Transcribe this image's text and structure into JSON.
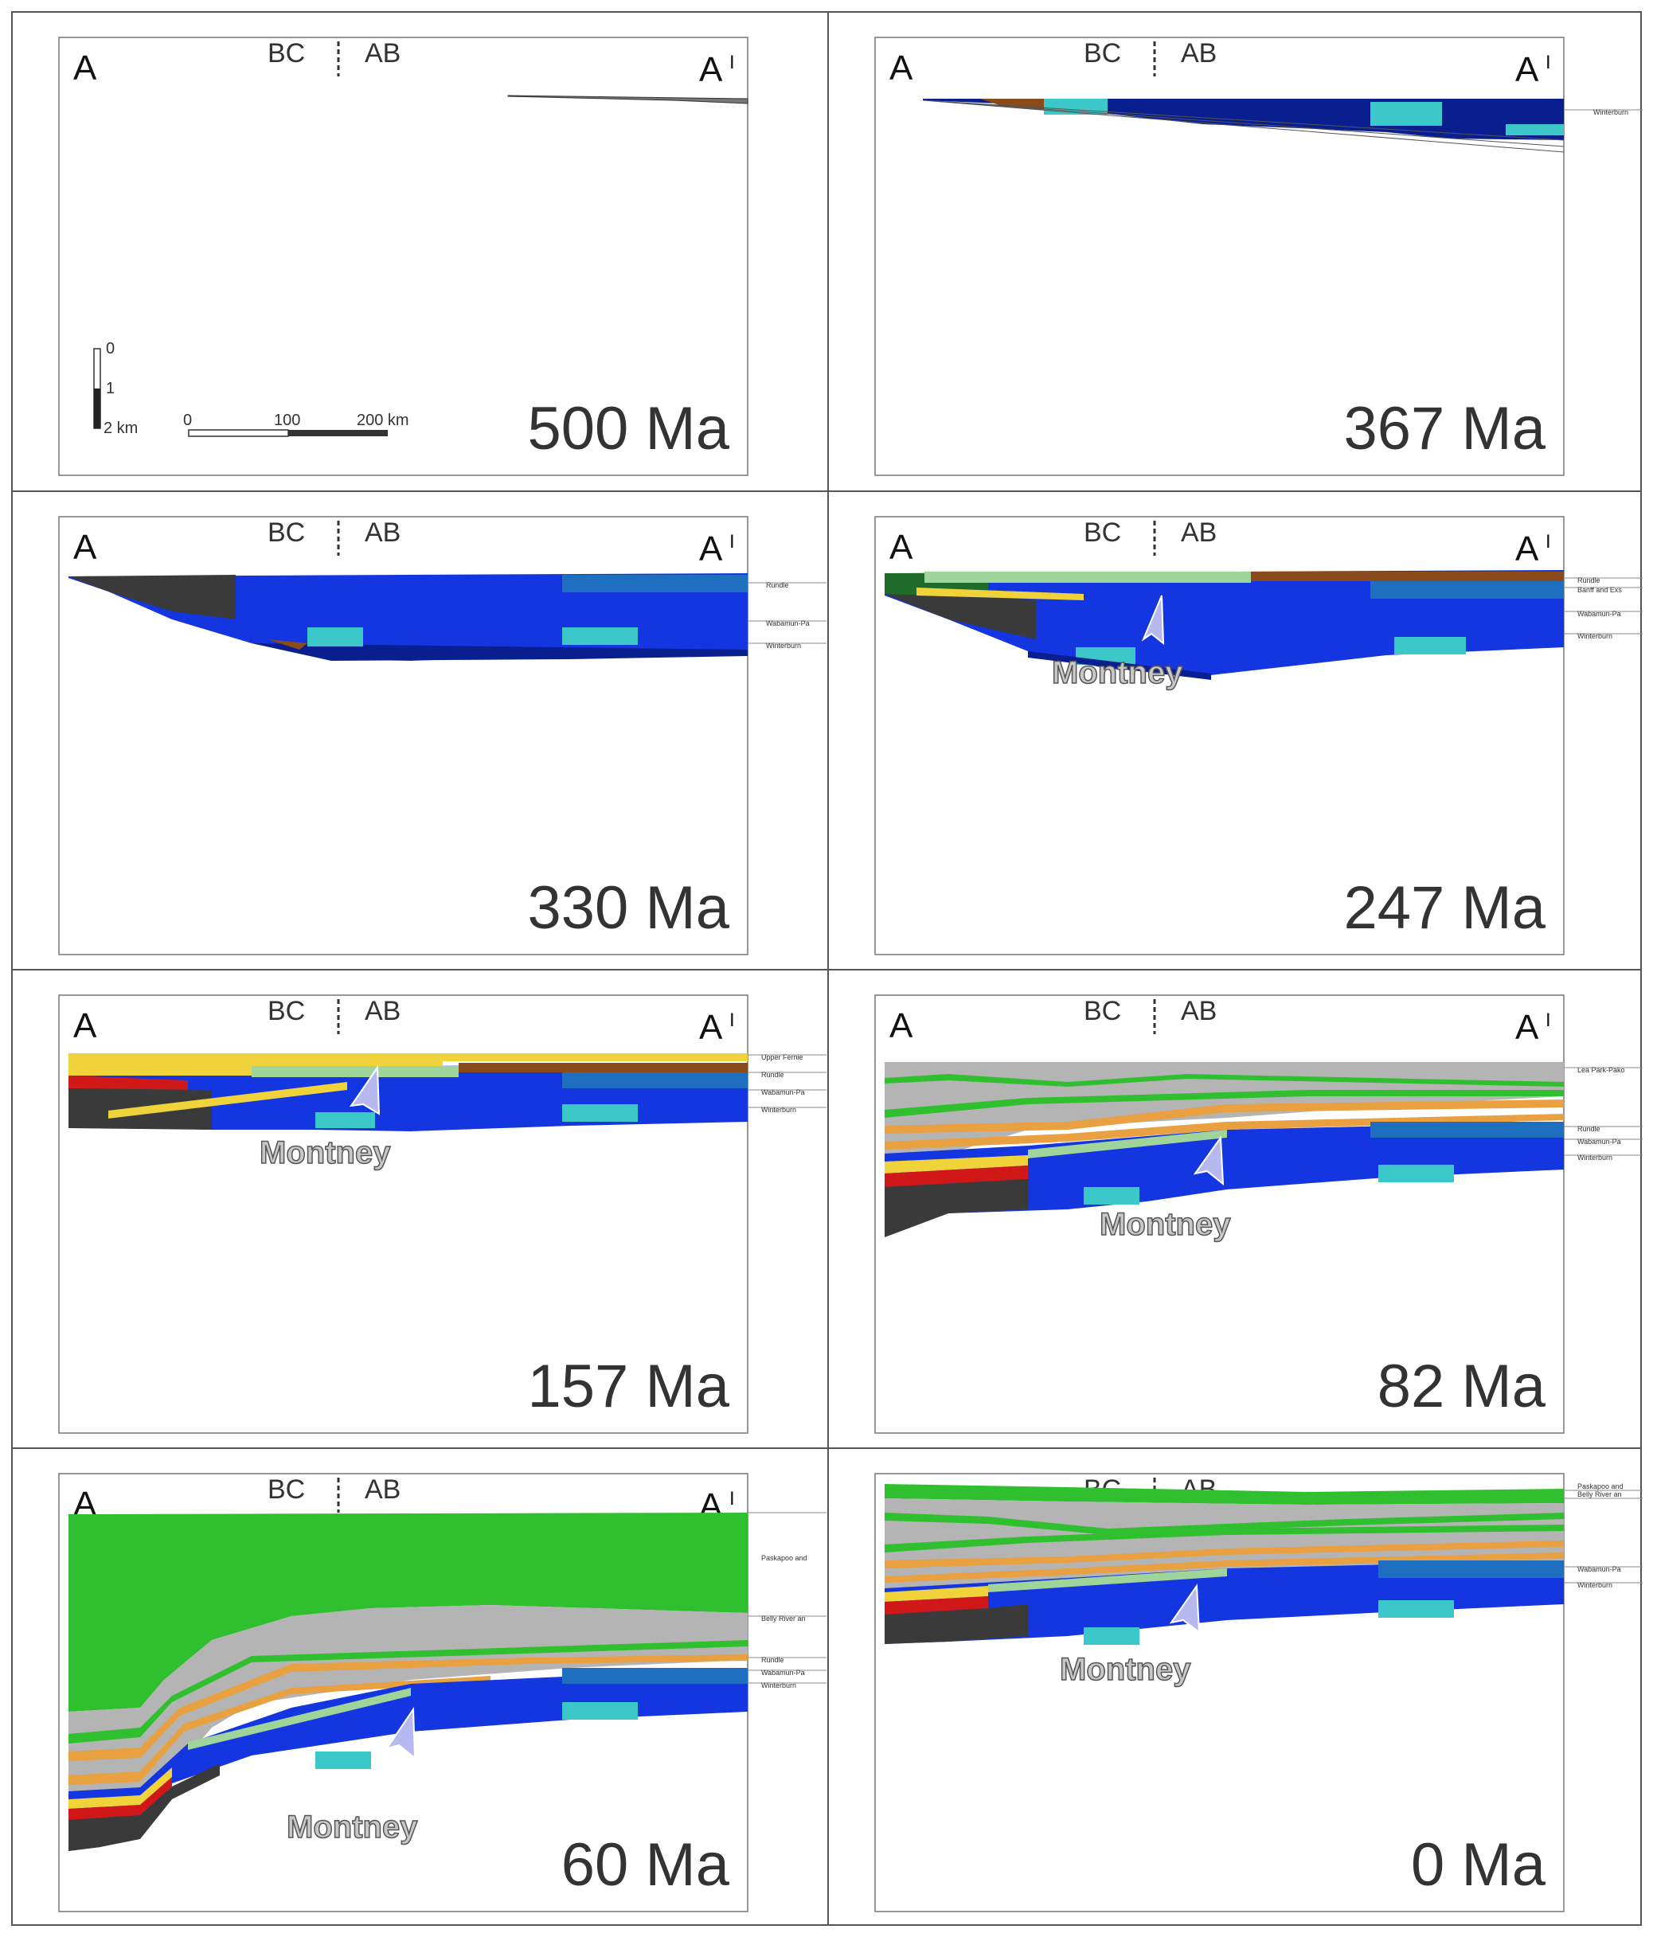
{
  "panels": [
    {
      "age": "500 Ma",
      "a": "A",
      "bc": "BC",
      "ab": "AB",
      "a_prime": "A",
      "a_prime_mark": "I"
    },
    {
      "age": "367 Ma",
      "a": "A",
      "bc": "BC",
      "ab": "AB",
      "a_prime": "A",
      "a_prime_mark": "I"
    },
    {
      "age": "330 Ma",
      "a": "A",
      "bc": "BC",
      "ab": "AB",
      "a_prime": "A",
      "a_prime_mark": "I"
    },
    {
      "age": "247 Ma",
      "a": "A",
      "bc": "BC",
      "ab": "AB",
      "a_prime": "A",
      "a_prime_mark": "I",
      "label": "Montney"
    },
    {
      "age": "157 Ma",
      "a": "A",
      "bc": "BC",
      "ab": "AB",
      "a_prime": "A",
      "a_prime_mark": "I",
      "label": "Montney"
    },
    {
      "age": "82 Ma",
      "a": "A",
      "bc": "BC",
      "ab": "AB",
      "a_prime": "A",
      "a_prime_mark": "I",
      "label": "Montney"
    },
    {
      "age": "60 Ma",
      "a": "A",
      "bc": "BC",
      "ab": "AB",
      "a_prime": "A",
      "a_prime_mark": "I",
      "label": "Montney"
    },
    {
      "age": "0 Ma",
      "bc": "BC",
      "ab": "AB",
      "label": "Montney"
    }
  ],
  "scale": {
    "depth_ticks": [
      "0",
      "1",
      "2 km"
    ],
    "distance_ticks": [
      "0",
      "100",
      "200 km"
    ]
  },
  "layer_labels": {
    "p367": [
      "Winterburn"
    ],
    "p330": [
      "Rundle",
      "Wabamun-Pa",
      "Winterburn"
    ],
    "p247": [
      "Rundle",
      "Banff and Exs",
      "Wabamun-Pa",
      "Winterburn"
    ],
    "p157": [
      "Upper Fernie",
      "Rundle",
      "Wabamun-Pa",
      "Winterburn"
    ],
    "p82": [
      "Lea Park-Pako",
      "Rundle",
      "Wabamun-Pa",
      "Winterburn"
    ],
    "p60": [
      "Paskapoo and",
      "Belly River an",
      "Rundle",
      "Wabamun-Pa",
      "Winterburn"
    ],
    "p0": [
      "Paskapoo and",
      "Belly River an",
      "Wabamun-Pa",
      "Winterburn"
    ]
  },
  "colors": {
    "deep_blue": "#0a1f8f",
    "royal_blue": "#1436e0",
    "cyan": "#3cc8c8",
    "dark_gray": "#3a3a3a",
    "brown": "#8a4a1c",
    "light_green": "#9fd49a",
    "green": "#2fbf2f",
    "dark_green": "#1f6b2a",
    "yellow": "#f0d23a",
    "red": "#d01818",
    "orange": "#e8a040",
    "gray": "#b4b4b4",
    "arrow": "#b8b8f0"
  }
}
